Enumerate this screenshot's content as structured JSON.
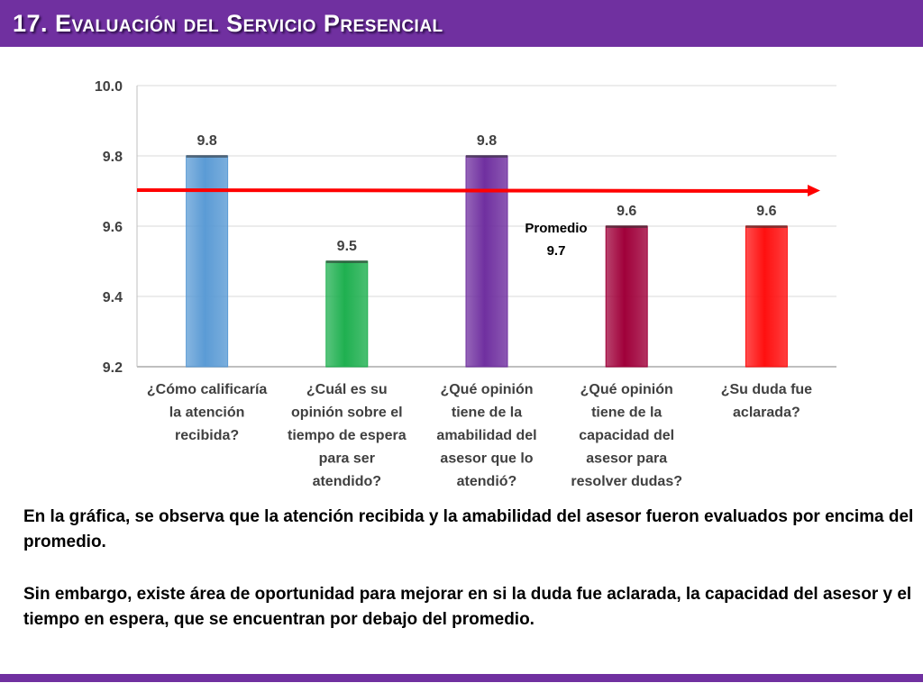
{
  "title": "17. Evaluación del Servicio Presencial",
  "chart_data": {
    "type": "bar",
    "categories": [
      [
        "¿Cómo calificaría",
        "la atención",
        "recibida?"
      ],
      [
        "¿Cuál es su",
        "opinión sobre el",
        "tiempo de espera",
        "para ser",
        "atendido?"
      ],
      [
        "¿Qué opinión",
        "tiene de la",
        "amabilidad del",
        "asesor que lo",
        "atendió?"
      ],
      [
        "¿Qué opinión",
        "tiene de la",
        "capacidad del",
        "asesor para",
        "resolver dudas?"
      ],
      [
        "¿Su duda fue",
        "aclarada?"
      ]
    ],
    "values": [
      9.8,
      9.5,
      9.8,
      9.6,
      9.6
    ],
    "value_labels": [
      "9.8",
      "9.5",
      "9.8",
      "9.6",
      "9.6"
    ],
    "colors": [
      "#5b9bd5",
      "#1fb050",
      "#7030a0",
      "#a0003a",
      "#ff1010"
    ],
    "ylim": [
      9.2,
      10.0
    ],
    "yticks": [
      "9.2",
      "9.4",
      "9.6",
      "9.8",
      "10.0"
    ],
    "grid": true,
    "average": {
      "value": 9.7,
      "label_lines": [
        "Promedio",
        "9.7"
      ],
      "color": "#ff0000"
    }
  },
  "paragraphs": [
    "En la gráfica, se observa que la atención recibida y la amabilidad del asesor fueron evaluados por encima del promedio.",
    "Sin embargo, existe área de oportunidad para mejorar en si la duda fue aclarada, la capacidad del asesor y el tiempo en espera, que se encuentran por debajo del promedio."
  ]
}
